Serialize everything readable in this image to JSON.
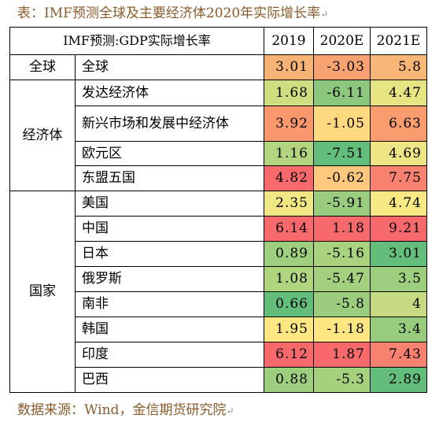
{
  "caption": "表：IMF预测全球及主要经济体2020年实际增长率",
  "source": "数据来源：Wind，金信期货研究院",
  "header": {
    "title": "IMF预测:GDP实际增长率",
    "years": [
      "2019",
      "2020E",
      "2021E"
    ]
  },
  "groups": [
    {
      "label": "全球"
    },
    {
      "label": "经济体"
    },
    {
      "label": "国家"
    }
  ],
  "rows": [
    {
      "group": 0,
      "name": "全球",
      "values": [
        "3.01",
        "-3.03",
        "5.8"
      ],
      "colors": [
        "#f7b276",
        "#f8a271",
        "#f8b777"
      ]
    },
    {
      "group": 1,
      "name": "发达经济体",
      "values": [
        "1.68",
        "-6.11",
        "4.47"
      ],
      "colors": [
        "#cfdd80",
        "#8bc77d",
        "#e7e483"
      ]
    },
    {
      "group": 1,
      "name": "新兴市场和发展中经济体",
      "values": [
        "3.92",
        "-1.05",
        "6.63"
      ],
      "colors": [
        "#f9986d",
        "#fed980",
        "#f99d6e"
      ]
    },
    {
      "group": 1,
      "name": "欧元区",
      "values": [
        "1.16",
        "-7.51",
        "4.69"
      ],
      "colors": [
        "#b4d57f",
        "#63be7b",
        "#eee685"
      ]
    },
    {
      "group": 1,
      "name": "东盟五国",
      "values": [
        "4.82",
        "-0.62",
        "7.75"
      ],
      "colors": [
        "#f8696b",
        "#fec87d",
        "#f8816f"
      ]
    },
    {
      "group": 2,
      "name": "美国",
      "values": [
        "2.35",
        "-5.91",
        "4.74"
      ],
      "colors": [
        "#f0e684",
        "#99cc7e",
        "#f8e984"
      ]
    },
    {
      "group": 2,
      "name": "中国",
      "values": [
        "6.14",
        "1.18",
        "9.21"
      ],
      "colors": [
        "#f8696b",
        "#f8696b",
        "#f8696b"
      ]
    },
    {
      "group": 2,
      "name": "日本",
      "values": [
        "0.89",
        "-5.16",
        "3.01"
      ],
      "colors": [
        "#9ecf7e",
        "#a9d27f",
        "#63be7b"
      ]
    },
    {
      "group": 2,
      "name": "俄罗斯",
      "values": [
        "1.08",
        "-5.47",
        "3.5"
      ],
      "colors": [
        "#afd57f",
        "#a3d07e",
        "#9dce7e"
      ]
    },
    {
      "group": 2,
      "name": "南非",
      "values": [
        "0.66",
        "-5.8",
        "4"
      ],
      "colors": [
        "#63be7b",
        "#9ccd7e",
        "#c5da81"
      ]
    },
    {
      "group": 2,
      "name": "韩国",
      "values": [
        "1.95",
        "-1.18",
        "3.4"
      ],
      "colors": [
        "#fee783",
        "#fee783",
        "#97cc7e"
      ]
    },
    {
      "group": 2,
      "name": "印度",
      "values": [
        "6.12",
        "1.87",
        "7.43"
      ],
      "colors": [
        "#f8696b",
        "#f8696b",
        "#f8816f"
      ]
    },
    {
      "group": 2,
      "name": "巴西",
      "values": [
        "0.88",
        "-5.3",
        "2.89"
      ],
      "colors": [
        "#9dce7e",
        "#a5d17e",
        "#63be7b"
      ]
    }
  ]
}
